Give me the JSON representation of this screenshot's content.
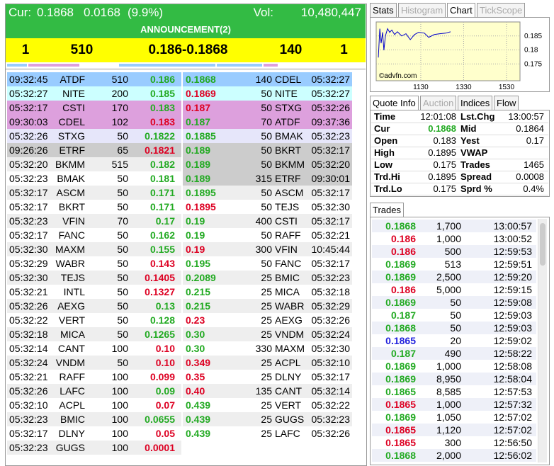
{
  "header": {
    "cur_label": "Cur:",
    "cur": "0.1868",
    "change": "0.0168",
    "change_pct": "(9.9%)",
    "vol_label": "Vol:",
    "vol": "10,480,447",
    "announcement": "ANNOUNCEMENT(2)"
  },
  "summary": [
    "1",
    "510",
    "0.186-0.1868",
    "140",
    "1"
  ],
  "bids": [
    {
      "time": "09:32:45",
      "code": "ATDF",
      "vol": "510",
      "price": "0.186",
      "color": "green",
      "bg": "#99ccff"
    },
    {
      "time": "05:32:27",
      "code": "NITE",
      "vol": "200",
      "price": "0.185",
      "color": "green",
      "bg": "#ccffff"
    },
    {
      "time": "05:32:17",
      "code": "CSTI",
      "vol": "170",
      "price": "0.183",
      "color": "green",
      "bg": "#dda0dd"
    },
    {
      "time": "09:30:03",
      "code": "CDEL",
      "vol": "102",
      "price": "0.183",
      "color": "red",
      "bg": "#dda0dd"
    },
    {
      "time": "05:32:26",
      "code": "STXG",
      "vol": "50",
      "price": "0.1822",
      "color": "green",
      "bg": "#e6e6fa"
    },
    {
      "time": "09:26:26",
      "code": "ETRF",
      "vol": "65",
      "price": "0.1821",
      "color": "red",
      "bg": "#cccccc"
    },
    {
      "time": "05:32:20",
      "code": "BKMM",
      "vol": "515",
      "price": "0.182",
      "color": "green"
    },
    {
      "time": "05:32:23",
      "code": "BMAK",
      "vol": "50",
      "price": "0.181",
      "color": "green"
    },
    {
      "time": "05:32:17",
      "code": "ASCM",
      "vol": "50",
      "price": "0.171",
      "color": "green"
    },
    {
      "time": "05:32:17",
      "code": "BKRT",
      "vol": "50",
      "price": "0.171",
      "color": "green"
    },
    {
      "time": "05:32:23",
      "code": "VFIN",
      "vol": "70",
      "price": "0.17",
      "color": "green"
    },
    {
      "time": "05:32:17",
      "code": "FANC",
      "vol": "50",
      "price": "0.162",
      "color": "green"
    },
    {
      "time": "05:32:30",
      "code": "MAXM",
      "vol": "50",
      "price": "0.155",
      "color": "green"
    },
    {
      "time": "05:32:29",
      "code": "WABR",
      "vol": "50",
      "price": "0.143",
      "color": "red"
    },
    {
      "time": "05:32:30",
      "code": "TEJS",
      "vol": "50",
      "price": "0.1405",
      "color": "red"
    },
    {
      "time": "05:32:21",
      "code": "INTL",
      "vol": "50",
      "price": "0.1327",
      "color": "red"
    },
    {
      "time": "05:32:26",
      "code": "AEXG",
      "vol": "50",
      "price": "0.13",
      "color": "green"
    },
    {
      "time": "05:32:22",
      "code": "VERT",
      "vol": "50",
      "price": "0.128",
      "color": "green"
    },
    {
      "time": "05:32:18",
      "code": "MICA",
      "vol": "50",
      "price": "0.1265",
      "color": "green"
    },
    {
      "time": "05:32:14",
      "code": "CANT",
      "vol": "100",
      "price": "0.10",
      "color": "red"
    },
    {
      "time": "05:32:24",
      "code": "VNDM",
      "vol": "50",
      "price": "0.10",
      "color": "red"
    },
    {
      "time": "05:32:21",
      "code": "RAFF",
      "vol": "100",
      "price": "0.099",
      "color": "red"
    },
    {
      "time": "05:32:26",
      "code": "LAFC",
      "vol": "100",
      "price": "0.09",
      "color": "green"
    },
    {
      "time": "05:32:10",
      "code": "ACPL",
      "vol": "100",
      "price": "0.07",
      "color": "red"
    },
    {
      "time": "05:32:23",
      "code": "BMIC",
      "vol": "100",
      "price": "0.0655",
      "color": "green"
    },
    {
      "time": "05:32:17",
      "code": "DLNY",
      "vol": "100",
      "price": "0.05",
      "color": "red"
    },
    {
      "time": "05:32:23",
      "code": "GUGS",
      "vol": "100",
      "price": "0.0001",
      "color": "red"
    }
  ],
  "asks": [
    {
      "price": "0.1868",
      "color": "green",
      "vol": "140",
      "code": "CDEL",
      "time": "05:32:27",
      "bg": "#99ccff"
    },
    {
      "price": "0.1869",
      "color": "red",
      "vol": "50",
      "code": "NITE",
      "time": "05:32:27",
      "bg": "#ccffff"
    },
    {
      "price": "0.187",
      "color": "red",
      "vol": "50",
      "code": "STXG",
      "time": "05:32:26",
      "bg": "#dda0dd"
    },
    {
      "price": "0.187",
      "color": "green",
      "vol": "70",
      "code": "ATDF",
      "time": "09:37:36",
      "bg": "#dda0dd"
    },
    {
      "price": "0.1885",
      "color": "green",
      "vol": "50",
      "code": "BMAK",
      "time": "05:32:23",
      "bg": "#e6e6fa"
    },
    {
      "price": "0.189",
      "color": "green",
      "vol": "50",
      "code": "BKRT",
      "time": "05:32:17",
      "bg": "#cccccc"
    },
    {
      "price": "0.189",
      "color": "green",
      "vol": "50",
      "code": "BKMM",
      "time": "05:32:20",
      "bg": "#cccccc"
    },
    {
      "price": "0.189",
      "color": "green",
      "vol": "315",
      "code": "ETRF",
      "time": "09:30:01",
      "bg": "#cccccc"
    },
    {
      "price": "0.1895",
      "color": "green",
      "vol": "50",
      "code": "ASCM",
      "time": "05:32:17"
    },
    {
      "price": "0.1895",
      "color": "red",
      "vol": "50",
      "code": "TEJS",
      "time": "05:32:30"
    },
    {
      "price": "0.19",
      "color": "green",
      "vol": "400",
      "code": "CSTI",
      "time": "05:32:17"
    },
    {
      "price": "0.19",
      "color": "green",
      "vol": "50",
      "code": "RAFF",
      "time": "05:32:21"
    },
    {
      "price": "0.19",
      "color": "red",
      "vol": "300",
      "code": "VFIN",
      "time": "10:45:44"
    },
    {
      "price": "0.195",
      "color": "green",
      "vol": "50",
      "code": "FANC",
      "time": "05:32:17"
    },
    {
      "price": "0.2089",
      "color": "green",
      "vol": "25",
      "code": "BMIC",
      "time": "05:32:23"
    },
    {
      "price": "0.215",
      "color": "green",
      "vol": "25",
      "code": "MICA",
      "time": "05:32:18"
    },
    {
      "price": "0.215",
      "color": "green",
      "vol": "25",
      "code": "WABR",
      "time": "05:32:29"
    },
    {
      "price": "0.23",
      "color": "red",
      "vol": "25",
      "code": "AEXG",
      "time": "05:32:26"
    },
    {
      "price": "0.30",
      "color": "green",
      "vol": "25",
      "code": "VNDM",
      "time": "05:32:24"
    },
    {
      "price": "0.30",
      "color": "green",
      "vol": "330",
      "code": "MAXM",
      "time": "05:32:30"
    },
    {
      "price": "0.349",
      "color": "red",
      "vol": "25",
      "code": "ACPL",
      "time": "05:32:10"
    },
    {
      "price": "0.35",
      "color": "red",
      "vol": "25",
      "code": "DLNY",
      "time": "05:32:17"
    },
    {
      "price": "0.40",
      "color": "red",
      "vol": "135",
      "code": "CANT",
      "time": "05:32:14"
    },
    {
      "price": "0.439",
      "color": "green",
      "vol": "25",
      "code": "VERT",
      "time": "05:32:22"
    },
    {
      "price": "0.439",
      "color": "green",
      "vol": "25",
      "code": "GUGS",
      "time": "05:32:23"
    },
    {
      "price": "0.439",
      "color": "green",
      "vol": "25",
      "code": "LAFC",
      "time": "05:32:26"
    }
  ],
  "chart_tabs": [
    {
      "label": "Stats",
      "state": "normal"
    },
    {
      "label": "Histogram",
      "state": "disabled"
    },
    {
      "label": "Chart",
      "state": "active"
    },
    {
      "label": "TickScope",
      "state": "disabled"
    }
  ],
  "mini_chart": {
    "type": "line",
    "color": "#0000cc",
    "credit": "©advfn.com",
    "x": [
      932,
      939,
      945,
      952,
      958,
      965,
      975,
      985,
      995,
      1008,
      1021,
      1041,
      1061,
      1081,
      1101,
      1120,
      1147,
      1167,
      1193,
      1219,
      1246,
      1269
    ],
    "values": [
      0.1773,
      0.1876,
      0.1824,
      0.1863,
      0.1799,
      0.185,
      0.1876,
      0.1863,
      0.1871,
      0.1855,
      0.1865,
      0.185,
      0.1858,
      0.1837,
      0.1855,
      0.1863,
      0.186,
      0.1845,
      0.1855,
      0.1858,
      0.186,
      0.1865
    ],
    "xlim": [
      922,
      1593
    ],
    "ylim": [
      0.169,
      0.19
    ],
    "xticks": [
      1130,
      1330,
      1530
    ],
    "yticks": [
      0.185,
      0.18,
      0.175
    ]
  },
  "quote_tabs": [
    {
      "label": "Quote Info",
      "state": "active"
    },
    {
      "label": "Auction",
      "state": "disabled"
    },
    {
      "label": "Indices",
      "state": "normal"
    },
    {
      "label": "Flow",
      "state": "normal"
    }
  ],
  "quote_info": [
    {
      "l1": "Time",
      "v1": "12:01:08",
      "l2": "Lst.Chg",
      "v2": "13:00:57"
    },
    {
      "l1": "Cur",
      "v1": "0.1868",
      "l2": "Mid",
      "v2": "0.1864",
      "color": "green"
    },
    {
      "l1": "Open",
      "v1": "0.183",
      "l2": "Yest",
      "v2": "0.17"
    },
    {
      "l1": "High",
      "v1": "0.1895",
      "l2": "VWAP",
      "v2": null
    },
    {
      "l1": "Low",
      "v1": "0.175",
      "l2": "Trades",
      "v2": "1465"
    },
    {
      "l1": "Trd.Hi",
      "v1": "0.1895",
      "l2": "Spread",
      "v2": "0.0008"
    },
    {
      "l1": "Trd.Lo",
      "v1": "0.175",
      "l2": "Sprd %",
      "v2": "0.4%"
    }
  ],
  "trades_tab": "Trades",
  "trades": [
    {
      "price": "0.1868",
      "vol": "1,700",
      "time": "13:00:57",
      "color": "green"
    },
    {
      "price": "0.186",
      "vol": "1,000",
      "time": "13:00:52",
      "color": "red"
    },
    {
      "price": "0.186",
      "vol": "500",
      "time": "12:59:53",
      "color": "red"
    },
    {
      "price": "0.1869",
      "vol": "513",
      "time": "12:59:51",
      "color": "green"
    },
    {
      "price": "0.1869",
      "vol": "2,500",
      "time": "12:59:20",
      "color": "green"
    },
    {
      "price": "0.186",
      "vol": "5,000",
      "time": "12:59:15",
      "color": "red"
    },
    {
      "price": "0.1869",
      "vol": "50",
      "time": "12:59:08",
      "color": "green"
    },
    {
      "price": "0.187",
      "vol": "50",
      "time": "12:59:03",
      "color": "green"
    },
    {
      "price": "0.1868",
      "vol": "50",
      "time": "12:59:03",
      "color": "green"
    },
    {
      "price": "0.1865",
      "vol": "20",
      "time": "12:59:02",
      "color": "blue"
    },
    {
      "price": "0.187",
      "vol": "490",
      "time": "12:58:22",
      "color": "green"
    },
    {
      "price": "0.1869",
      "vol": "1,000",
      "time": "12:58:08",
      "color": "green"
    },
    {
      "price": "0.1869",
      "vol": "8,950",
      "time": "12:58:04",
      "color": "green"
    },
    {
      "price": "0.1865",
      "vol": "8,585",
      "time": "12:57:53",
      "color": "green"
    },
    {
      "price": "0.1865",
      "vol": "1,000",
      "time": "12:57:32",
      "color": "red"
    },
    {
      "price": "0.1869",
      "vol": "1,050",
      "time": "12:57:02",
      "color": "green"
    },
    {
      "price": "0.1865",
      "vol": "1,120",
      "time": "12:57:02",
      "color": "red"
    },
    {
      "price": "0.1865",
      "vol": "300",
      "time": "12:56:50",
      "color": "red"
    },
    {
      "price": "0.1868",
      "vol": "2,000",
      "time": "12:56:02",
      "color": "green"
    }
  ]
}
